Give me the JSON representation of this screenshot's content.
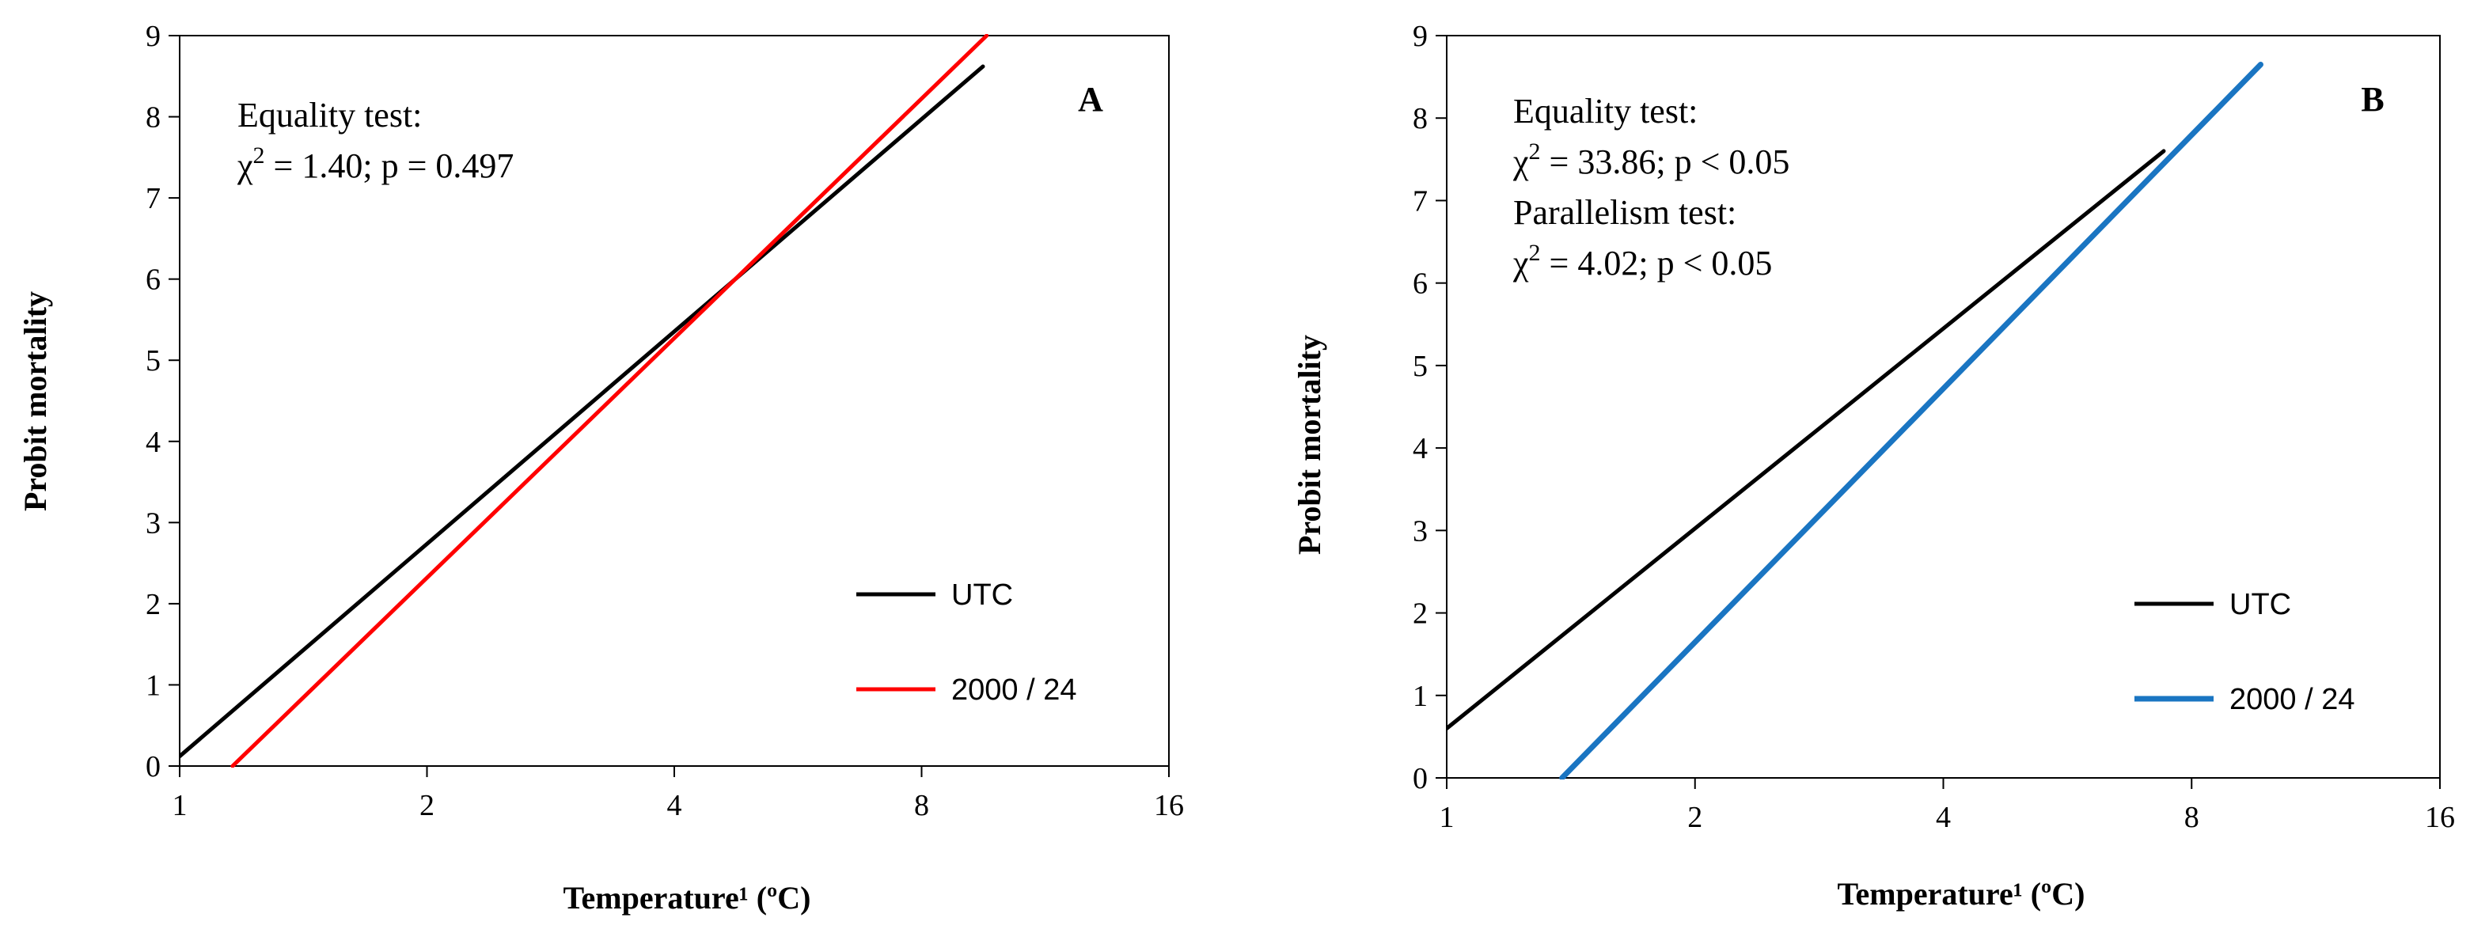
{
  "chart_data": [
    {
      "type": "line",
      "panel_label": "A",
      "xlabel": "Temperature¹ (ºC)",
      "ylabel": "Probit mortality",
      "xscale": "log2",
      "xlim": [
        1,
        16
      ],
      "ylim": [
        0,
        9
      ],
      "xticks": [
        1,
        2,
        4,
        8,
        16
      ],
      "xtick_labels": [
        "1",
        "2",
        "4",
        "8",
        "16"
      ],
      "yticks": [
        0,
        1,
        2,
        3,
        4,
        5,
        6,
        7,
        8,
        9
      ],
      "ytick_labels": [
        "0",
        "1",
        "2",
        "3",
        "4",
        "5",
        "6",
        "7",
        "8",
        "9"
      ],
      "annotation_lines": [
        "Equality test:",
        "χ² = 1.40; p = 0.497"
      ],
      "annotation_parts": [
        [
          {
            "t": "Equality test:"
          }
        ],
        [
          {
            "t": "χ"
          },
          {
            "t": "2",
            "sup": true
          },
          {
            "t": " = 1.40; p = 0.497"
          }
        ]
      ],
      "legend_position": "lower-right",
      "series": [
        {
          "name": "UTC",
          "color": "#000000",
          "width": 5,
          "x": [
            1.0,
            9.5
          ],
          "y": [
            0.12,
            8.62
          ]
        },
        {
          "name": "2000 / 24",
          "color": "#ff0000",
          "width": 5,
          "x": [
            1.16,
            9.6
          ],
          "y": [
            0.0,
            9.0
          ]
        }
      ]
    },
    {
      "type": "line",
      "panel_label": "B",
      "xlabel": "Temperature¹ (ºC)",
      "ylabel": "Probit mortality",
      "xscale": "log2",
      "xlim": [
        1,
        16
      ],
      "ylim": [
        0,
        9
      ],
      "xticks": [
        1,
        2,
        4,
        8,
        16
      ],
      "xtick_labels": [
        "1",
        "2",
        "4",
        "8",
        "16"
      ],
      "yticks": [
        0,
        1,
        2,
        3,
        4,
        5,
        6,
        7,
        8,
        9
      ],
      "ytick_labels": [
        "0",
        "1",
        "2",
        "3",
        "4",
        "5",
        "6",
        "7",
        "8",
        "9"
      ],
      "annotation_lines": [
        "Equality test:",
        "χ² = 33.86; p < 0.05",
        "Parallelism test:",
        "χ² = 4.02; p < 0.05"
      ],
      "annotation_parts": [
        [
          {
            "t": "Equality test:"
          }
        ],
        [
          {
            "t": "χ"
          },
          {
            "t": "2",
            "sup": true
          },
          {
            "t": " = 33.86; p < 0.05"
          }
        ],
        [
          {
            "t": "Parallelism test:"
          }
        ],
        [
          {
            "t": "χ"
          },
          {
            "t": "2",
            "sup": true
          },
          {
            "t": " = 4.02; p < 0.05"
          }
        ]
      ],
      "legend_position": "lower-right",
      "series": [
        {
          "name": "UTC",
          "color": "#000000",
          "width": 5,
          "x": [
            1.0,
            7.4
          ],
          "y": [
            0.6,
            7.6
          ]
        },
        {
          "name": "2000 / 24",
          "color": "#1a75c2",
          "width": 7,
          "x": [
            1.38,
            9.7
          ],
          "y": [
            0.0,
            8.65
          ]
        }
      ]
    }
  ]
}
